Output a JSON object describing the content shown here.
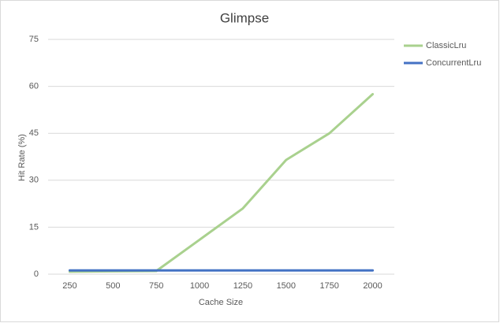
{
  "chart_data": {
    "type": "line",
    "title": "Glimpse",
    "x_label": "Cache Size",
    "y_label": "Hit Rate (%)",
    "categories": [
      "250",
      "500",
      "750",
      "1000",
      "1250",
      "1500",
      "1750",
      "2000"
    ],
    "series": [
      {
        "name": "ClassicLru",
        "color": "#a9d18e",
        "values": [
          0.8,
          0.9,
          1.0,
          11,
          21,
          36.5,
          45,
          57.5
        ]
      },
      {
        "name": "ConcurrentLru",
        "color": "#4472c4",
        "values": [
          1.2,
          1.2,
          1.2,
          1.2,
          1.2,
          1.2,
          1.2,
          1.2
        ]
      }
    ],
    "ylim": [
      0,
      75
    ],
    "yticks": [
      0,
      15,
      30,
      45,
      60,
      75
    ],
    "grid": true,
    "legend": "right"
  }
}
